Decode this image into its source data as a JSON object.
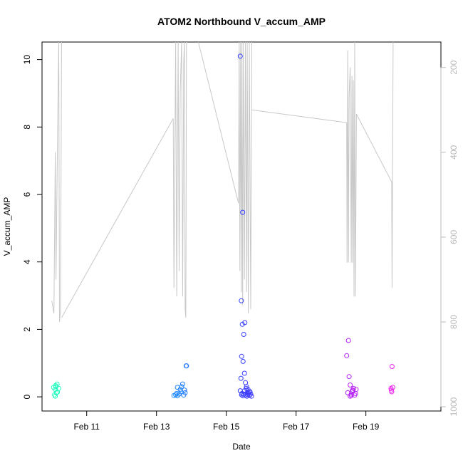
{
  "chart_data": {
    "type": "scatter",
    "title": "ATOM2 Northbound V_accum_AMP",
    "xlabel": "Date",
    "ylabel": "V_accum_AMP",
    "x_ticks": [
      "Feb 11",
      "Feb 13",
      "Feb 15",
      "Feb 17",
      "Feb 19"
    ],
    "x_tick_values": [
      11,
      13,
      15,
      17,
      19
    ],
    "xlim": [
      9.72,
      21.15
    ],
    "ylim": [
      -0.42,
      10.52
    ],
    "y_ticks": [
      0,
      2,
      4,
      6,
      8,
      10
    ],
    "right_axis": {
      "ticks": [
        200,
        400,
        600,
        800,
        1000
      ],
      "range": [
        1010,
        140
      ],
      "color": "#bbbbbb"
    },
    "grid": false,
    "legend": "none",
    "colors": {
      "line": "#c8c8c8",
      "gradient": [
        "#22ffbb",
        "#19bfff",
        "#2244ff",
        "#7a22ff",
        "#ee22ee"
      ]
    },
    "points": [
      [
        10.05,
        0.28
      ],
      [
        10.1,
        0.22
      ],
      [
        10.12,
        0.3
      ],
      [
        10.15,
        0.38
      ],
      [
        10.13,
        0.12
      ],
      [
        10.08,
        0.06
      ],
      [
        10.1,
        0.02
      ],
      [
        10.16,
        0.14
      ],
      [
        10.2,
        0.25
      ],
      [
        10.11,
        0.33
      ],
      [
        13.5,
        0.04
      ],
      [
        13.55,
        0.06
      ],
      [
        13.6,
        0.03
      ],
      [
        13.58,
        0.1
      ],
      [
        13.65,
        0.08
      ],
      [
        13.7,
        0.15
      ],
      [
        13.72,
        0.3
      ],
      [
        13.75,
        0.38
      ],
      [
        13.8,
        0.2
      ],
      [
        13.82,
        0.12
      ],
      [
        13.6,
        0.28
      ],
      [
        13.85,
        0.92
      ],
      [
        13.86,
        0.92
      ],
      [
        13.78,
        0.05
      ],
      [
        13.68,
        0.22
      ],
      [
        15.4,
        10.1
      ],
      [
        15.47,
        5.47
      ],
      [
        15.43,
        2.85
      ],
      [
        15.46,
        2.15
      ],
      [
        15.53,
        2.2
      ],
      [
        15.5,
        1.85
      ],
      [
        15.44,
        1.2
      ],
      [
        15.48,
        1.05
      ],
      [
        15.52,
        0.7
      ],
      [
        15.42,
        0.55
      ],
      [
        15.55,
        0.42
      ],
      [
        15.58,
        0.3
      ],
      [
        15.62,
        0.22
      ],
      [
        15.65,
        0.15
      ],
      [
        15.4,
        0.18
      ],
      [
        15.45,
        0.1
      ],
      [
        15.5,
        0.08
      ],
      [
        15.55,
        0.05
      ],
      [
        15.6,
        0.12
      ],
      [
        15.66,
        0.04
      ],
      [
        15.7,
        0.08
      ],
      [
        15.72,
        0.02
      ],
      [
        15.48,
        0.03
      ],
      [
        15.52,
        0.18
      ],
      [
        15.57,
        0.25
      ],
      [
        15.64,
        0.1
      ],
      [
        15.68,
        0.15
      ],
      [
        15.44,
        0.06
      ],
      [
        15.59,
        0.02
      ],
      [
        15.61,
        0.07
      ],
      [
        18.45,
        1.22
      ],
      [
        18.5,
        1.67
      ],
      [
        18.52,
        0.6
      ],
      [
        18.55,
        0.35
      ],
      [
        18.48,
        0.12
      ],
      [
        18.58,
        0.08
      ],
      [
        18.6,
        0.15
      ],
      [
        18.62,
        0.2
      ],
      [
        18.65,
        0.25
      ],
      [
        18.68,
        0.05
      ],
      [
        18.7,
        0.1
      ],
      [
        18.55,
        0.02
      ],
      [
        18.72,
        0.22
      ],
      [
        18.63,
        0.18
      ],
      [
        18.58,
        0.04
      ],
      [
        19.75,
        0.9
      ],
      [
        19.72,
        0.25
      ],
      [
        19.74,
        0.15
      ],
      [
        19.77,
        0.28
      ],
      [
        19.73,
        0.2
      ]
    ],
    "line_segments": [
      [
        [
          10.0,
          750
        ],
        [
          10.06,
          780
        ],
        [
          10.1,
          400
        ],
        [
          10.12,
          700
        ],
        [
          10.18,
          260
        ],
        [
          10.2,
          140
        ],
        [
          10.22,
          800
        ],
        [
          10.25,
          770
        ],
        [
          10.28,
          140
        ]
      ],
      [
        [
          10.28,
          790
        ],
        [
          13.48,
          320
        ]
      ],
      [
        [
          13.48,
          320
        ],
        [
          13.5,
          720
        ],
        [
          13.55,
          140
        ],
        [
          13.58,
          740
        ],
        [
          13.62,
          140
        ],
        [
          13.65,
          680
        ],
        [
          13.68,
          260
        ],
        [
          13.72,
          140
        ],
        [
          13.75,
          740
        ],
        [
          13.78,
          190
        ],
        [
          13.8,
          140
        ],
        [
          13.82,
          770
        ],
        [
          13.84,
          790
        ],
        [
          13.86,
          140
        ],
        [
          13.88,
          140
        ]
      ],
      [
        [
          14.2,
          140
        ],
        [
          15.35,
          520
        ]
      ],
      [
        [
          15.35,
          520
        ],
        [
          15.37,
          140
        ],
        [
          15.39,
          680
        ],
        [
          15.41,
          140
        ],
        [
          15.43,
          730
        ],
        [
          15.45,
          140
        ],
        [
          15.47,
          760
        ],
        [
          15.49,
          140
        ],
        [
          15.52,
          700
        ],
        [
          15.55,
          140
        ],
        [
          15.58,
          730
        ],
        [
          15.6,
          140
        ],
        [
          15.63,
          780
        ],
        [
          15.66,
          140
        ],
        [
          15.7,
          770
        ],
        [
          15.73,
          140
        ]
      ],
      [
        [
          15.73,
          300
        ],
        [
          18.45,
          330
        ]
      ],
      [
        [
          18.45,
          330
        ],
        [
          18.46,
          660
        ],
        [
          18.48,
          160
        ],
        [
          18.5,
          660
        ],
        [
          18.52,
          270
        ],
        [
          18.55,
          200
        ],
        [
          18.58,
          660
        ],
        [
          18.6,
          220
        ],
        [
          18.62,
          660
        ],
        [
          18.64,
          230
        ],
        [
          18.66,
          740
        ],
        [
          18.68,
          140
        ],
        [
          18.7,
          740
        ],
        [
          18.73,
          310
        ]
      ],
      [
        [
          18.73,
          310
        ],
        [
          19.74,
          470
        ]
      ],
      [
        [
          19.74,
          470
        ],
        [
          19.75,
          720
        ],
        [
          19.78,
          140
        ]
      ]
    ]
  }
}
